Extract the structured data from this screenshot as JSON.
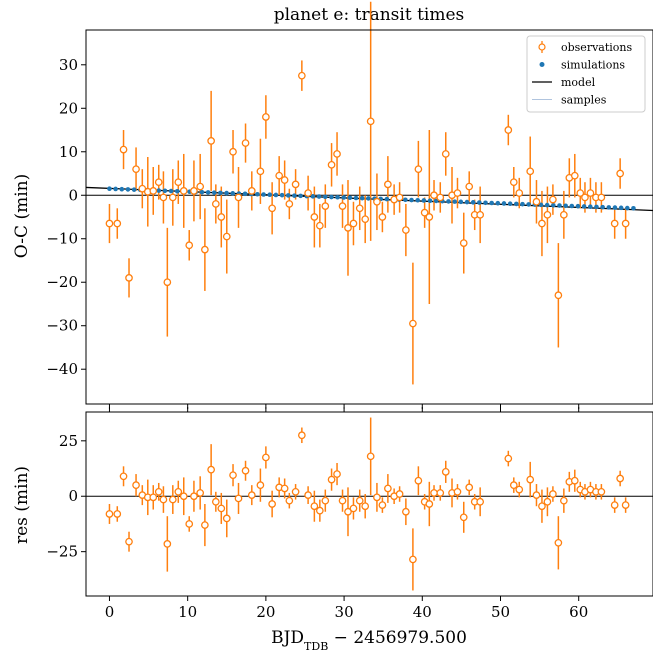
{
  "chart_data": [
    {
      "type": "scatter",
      "title": "planet e: transit times",
      "ylabel": "O-C (min)",
      "xlim": [
        -3,
        69.5
      ],
      "ylim": [
        -48,
        38
      ],
      "x_ticks": [
        0,
        10,
        20,
        30,
        40,
        50,
        60
      ],
      "y_ticks": [
        -40,
        -30,
        -20,
        -10,
        0,
        10,
        20,
        30
      ],
      "y_tick_labels": [
        "−40",
        "−30",
        "−20",
        "−10",
        "0",
        "10",
        "20",
        "30"
      ],
      "legend": {
        "placement": "top-right",
        "entries": [
          "observations",
          "simulations",
          "model",
          "samples"
        ]
      },
      "colors": {
        "observations": "#ff7f0e",
        "simulations": "#1f77b4",
        "model": "#000000",
        "samples": "#b0c4de"
      },
      "model": {
        "x": [
          -3,
          69.5
        ],
        "y": [
          1.8,
          -3.5
        ]
      },
      "simulations": {
        "x_start": 0,
        "x_end": 67,
        "count": 86,
        "y_start": 1.5,
        "y_end": -3.0
      },
      "observations": [
        {
          "x": 0.0,
          "y": -6.5,
          "err": 4.5
        },
        {
          "x": 1.0,
          "y": -6.5,
          "err": 3.5
        },
        {
          "x": 1.8,
          "y": 10.5,
          "err": 4.5
        },
        {
          "x": 2.5,
          "y": -19.0,
          "err": 4.5
        },
        {
          "x": 3.4,
          "y": 6.0,
          "err": 5.0
        },
        {
          "x": 4.2,
          "y": 1.5,
          "err": 4.5
        },
        {
          "x": 4.9,
          "y": 0.8,
          "err": 8.0
        },
        {
          "x": 5.6,
          "y": 1.0,
          "err": 5.5
        },
        {
          "x": 6.3,
          "y": 3.0,
          "err": 4.0
        },
        {
          "x": 6.9,
          "y": -0.5,
          "err": 6.0
        },
        {
          "x": 7.4,
          "y": -20.0,
          "err": 12.5
        },
        {
          "x": 8.1,
          "y": -0.5,
          "err": 6.5
        },
        {
          "x": 8.8,
          "y": 3.0,
          "err": 5.0
        },
        {
          "x": 9.5,
          "y": 1.0,
          "err": 8.5
        },
        {
          "x": 10.2,
          "y": -11.5,
          "err": 3.5
        },
        {
          "x": 10.8,
          "y": 1.0,
          "err": 7.0
        },
        {
          "x": 11.6,
          "y": 2.0,
          "err": 7.5
        },
        {
          "x": 12.2,
          "y": -12.5,
          "err": 9.5
        },
        {
          "x": 13.0,
          "y": 12.5,
          "err": 11.5
        },
        {
          "x": 13.6,
          "y": -2.0,
          "err": 4.5
        },
        {
          "x": 14.3,
          "y": -5.0,
          "err": 7.0
        },
        {
          "x": 15.0,
          "y": -9.5,
          "err": 8.5
        },
        {
          "x": 15.8,
          "y": 10.0,
          "err": 5.0
        },
        {
          "x": 16.5,
          "y": -0.5,
          "err": 7.0
        },
        {
          "x": 17.4,
          "y": 12.0,
          "err": 4.5
        },
        {
          "x": 18.2,
          "y": 1.0,
          "err": 4.5
        },
        {
          "x": 19.3,
          "y": 5.5,
          "err": 7.5
        },
        {
          "x": 20.0,
          "y": 18.0,
          "err": 5.0
        },
        {
          "x": 20.8,
          "y": -3.0,
          "err": 6.0
        },
        {
          "x": 21.7,
          "y": 4.5,
          "err": 4.5
        },
        {
          "x": 22.4,
          "y": 3.5,
          "err": 4.5
        },
        {
          "x": 23.0,
          "y": -2.0,
          "err": 3.5
        },
        {
          "x": 23.8,
          "y": 2.5,
          "err": 3.5
        },
        {
          "x": 24.6,
          "y": 27.5,
          "err": 3.5
        },
        {
          "x": 25.4,
          "y": 0.5,
          "err": 4.0
        },
        {
          "x": 26.2,
          "y": -5.0,
          "err": 7.0
        },
        {
          "x": 26.9,
          "y": -7.0,
          "err": 5.0
        },
        {
          "x": 27.6,
          "y": -2.5,
          "err": 5.0
        },
        {
          "x": 28.4,
          "y": 7.0,
          "err": 5.0
        },
        {
          "x": 29.1,
          "y": 9.5,
          "err": 5.0
        },
        {
          "x": 29.8,
          "y": -2.5,
          "err": 5.0
        },
        {
          "x": 30.5,
          "y": -7.5,
          "err": 11.0
        },
        {
          "x": 31.2,
          "y": -6.5,
          "err": 5.0
        },
        {
          "x": 32.0,
          "y": -3.0,
          "err": 5.0
        },
        {
          "x": 32.7,
          "y": -5.5,
          "err": 5.5
        },
        {
          "x": 33.4,
          "y": 17.0,
          "err": 27.5
        },
        {
          "x": 34.2,
          "y": -1.5,
          "err": 6.5
        },
        {
          "x": 34.9,
          "y": -5.0,
          "err": 3.5
        },
        {
          "x": 35.6,
          "y": 2.5,
          "err": 6.5
        },
        {
          "x": 36.4,
          "y": -1.0,
          "err": 3.5
        },
        {
          "x": 37.1,
          "y": -0.5,
          "err": 3.5
        },
        {
          "x": 37.9,
          "y": -8.0,
          "err": 6.0
        },
        {
          "x": 38.8,
          "y": -29.5,
          "err": 14.0
        },
        {
          "x": 39.5,
          "y": 6.0,
          "err": 6.5
        },
        {
          "x": 40.3,
          "y": -4.0,
          "err": 3.5
        },
        {
          "x": 40.9,
          "y": -5.0,
          "err": 20.0
        },
        {
          "x": 41.5,
          "y": 0.0,
          "err": 3.5
        },
        {
          "x": 42.3,
          "y": -0.5,
          "err": 3.5
        },
        {
          "x": 43.0,
          "y": 9.5,
          "err": 5.0
        },
        {
          "x": 43.8,
          "y": 0.0,
          "err": 6.5
        },
        {
          "x": 44.5,
          "y": 0.5,
          "err": 3.5
        },
        {
          "x": 45.3,
          "y": -11.0,
          "err": 7.0
        },
        {
          "x": 46.0,
          "y": 2.0,
          "err": 3.5
        },
        {
          "x": 46.7,
          "y": -4.5,
          "err": 3.5
        },
        {
          "x": 47.4,
          "y": -4.5,
          "err": 6.5
        },
        {
          "x": 51.0,
          "y": 15.0,
          "err": 3.5
        },
        {
          "x": 51.7,
          "y": 3.0,
          "err": 3.5
        },
        {
          "x": 52.4,
          "y": 0.5,
          "err": 3.5
        },
        {
          "x": 53.8,
          "y": 5.5,
          "err": 8.0
        },
        {
          "x": 54.6,
          "y": -1.5,
          "err": 5.0
        },
        {
          "x": 55.3,
          "y": -6.5,
          "err": 7.5
        },
        {
          "x": 56.0,
          "y": -4.5,
          "err": 6.5
        },
        {
          "x": 56.7,
          "y": -1.0,
          "err": 3.5
        },
        {
          "x": 57.4,
          "y": -23.0,
          "err": 12.0
        },
        {
          "x": 58.1,
          "y": -4.5,
          "err": 5.5
        },
        {
          "x": 58.8,
          "y": 4.0,
          "err": 4.5
        },
        {
          "x": 59.5,
          "y": 4.5,
          "err": 5.0
        },
        {
          "x": 60.2,
          "y": 0.5,
          "err": 3.5
        },
        {
          "x": 60.8,
          "y": -0.5,
          "err": 3.5
        },
        {
          "x": 61.5,
          "y": 0.5,
          "err": 3.5
        },
        {
          "x": 62.2,
          "y": -0.5,
          "err": 3.5
        },
        {
          "x": 62.9,
          "y": -0.5,
          "err": 3.5
        },
        {
          "x": 64.6,
          "y": -6.5,
          "err": 3.5
        },
        {
          "x": 65.3,
          "y": 5.0,
          "err": 3.5
        },
        {
          "x": 66.0,
          "y": -6.5,
          "err": 3.5
        }
      ]
    },
    {
      "type": "scatter",
      "ylabel": "res (min)",
      "xlabel": "BJD",
      "xlabel_subscript": "TDB",
      "xlabel_suffix": " − 2456979.500",
      "xlim": [
        -3,
        69.5
      ],
      "ylim": [
        -45,
        38
      ],
      "x_ticks": [
        0,
        10,
        20,
        30,
        40,
        50,
        60
      ],
      "x_tick_labels": [
        "0",
        "10",
        "20",
        "30",
        "40",
        "50",
        "60"
      ],
      "y_ticks": [
        -25,
        0,
        25
      ],
      "y_tick_labels": [
        "−25",
        "0",
        "25"
      ],
      "zero_line": 0,
      "residuals": [
        {
          "x": 0.0,
          "y": -8.0,
          "err": 4.5
        },
        {
          "x": 1.0,
          "y": -8.0,
          "err": 3.5
        },
        {
          "x": 1.8,
          "y": 9.0,
          "err": 4.5
        },
        {
          "x": 2.5,
          "y": -20.5,
          "err": 4.5
        },
        {
          "x": 3.4,
          "y": 5.0,
          "err": 5.0
        },
        {
          "x": 4.2,
          "y": 0.5,
          "err": 4.5
        },
        {
          "x": 4.9,
          "y": -0.5,
          "err": 8.0
        },
        {
          "x": 5.6,
          "y": -0.5,
          "err": 5.5
        },
        {
          "x": 6.3,
          "y": 2.0,
          "err": 4.0
        },
        {
          "x": 6.9,
          "y": -1.5,
          "err": 6.0
        },
        {
          "x": 7.4,
          "y": -21.5,
          "err": 12.5
        },
        {
          "x": 8.1,
          "y": -1.5,
          "err": 6.5
        },
        {
          "x": 8.8,
          "y": 2.0,
          "err": 5.0
        },
        {
          "x": 9.5,
          "y": 0.0,
          "err": 8.5
        },
        {
          "x": 10.2,
          "y": -12.5,
          "err": 3.5
        },
        {
          "x": 10.8,
          "y": 0.0,
          "err": 7.0
        },
        {
          "x": 11.6,
          "y": 1.5,
          "err": 7.5
        },
        {
          "x": 12.2,
          "y": -13.0,
          "err": 9.5
        },
        {
          "x": 13.0,
          "y": 12.0,
          "err": 11.5
        },
        {
          "x": 13.6,
          "y": -2.5,
          "err": 4.5
        },
        {
          "x": 14.3,
          "y": -5.5,
          "err": 7.0
        },
        {
          "x": 15.0,
          "y": -10.0,
          "err": 8.5
        },
        {
          "x": 15.8,
          "y": 9.5,
          "err": 5.0
        },
        {
          "x": 16.5,
          "y": -1.0,
          "err": 7.0
        },
        {
          "x": 17.4,
          "y": 11.5,
          "err": 4.5
        },
        {
          "x": 18.2,
          "y": 0.5,
          "err": 4.5
        },
        {
          "x": 19.3,
          "y": 5.0,
          "err": 7.5
        },
        {
          "x": 20.0,
          "y": 17.5,
          "err": 5.0
        },
        {
          "x": 20.8,
          "y": -3.5,
          "err": 6.0
        },
        {
          "x": 21.7,
          "y": 4.0,
          "err": 4.5
        },
        {
          "x": 22.4,
          "y": 3.5,
          "err": 4.5
        },
        {
          "x": 23.0,
          "y": -2.0,
          "err": 3.5
        },
        {
          "x": 23.8,
          "y": 2.0,
          "err": 3.5
        },
        {
          "x": 24.6,
          "y": 27.5,
          "err": 3.5
        },
        {
          "x": 25.4,
          "y": 0.5,
          "err": 4.0
        },
        {
          "x": 26.2,
          "y": -4.5,
          "err": 7.0
        },
        {
          "x": 26.9,
          "y": -6.5,
          "err": 5.0
        },
        {
          "x": 27.6,
          "y": -2.0,
          "err": 5.0
        },
        {
          "x": 28.4,
          "y": 7.5,
          "err": 5.0
        },
        {
          "x": 29.1,
          "y": 10.0,
          "err": 5.0
        },
        {
          "x": 29.8,
          "y": -2.0,
          "err": 5.0
        },
        {
          "x": 30.5,
          "y": -7.0,
          "err": 11.0
        },
        {
          "x": 31.2,
          "y": -5.5,
          "err": 5.0
        },
        {
          "x": 32.0,
          "y": -2.0,
          "err": 5.0
        },
        {
          "x": 32.7,
          "y": -4.5,
          "err": 5.5
        },
        {
          "x": 33.4,
          "y": 18.0,
          "err": 17.5
        },
        {
          "x": 34.2,
          "y": -0.5,
          "err": 6.5
        },
        {
          "x": 34.9,
          "y": -4.0,
          "err": 3.5
        },
        {
          "x": 35.6,
          "y": 3.5,
          "err": 6.5
        },
        {
          "x": 36.4,
          "y": 0.0,
          "err": 3.5
        },
        {
          "x": 37.1,
          "y": 1.0,
          "err": 3.5
        },
        {
          "x": 37.9,
          "y": -7.0,
          "err": 6.0
        },
        {
          "x": 38.8,
          "y": -28.5,
          "err": 14.0
        },
        {
          "x": 39.5,
          "y": 7.0,
          "err": 6.5
        },
        {
          "x": 40.3,
          "y": -2.5,
          "err": 3.5
        },
        {
          "x": 40.9,
          "y": -3.5,
          "err": 10.0
        },
        {
          "x": 41.5,
          "y": 1.5,
          "err": 3.5
        },
        {
          "x": 42.3,
          "y": 1.5,
          "err": 3.5
        },
        {
          "x": 43.0,
          "y": 11.0,
          "err": 5.0
        },
        {
          "x": 43.8,
          "y": 1.5,
          "err": 6.5
        },
        {
          "x": 44.5,
          "y": 2.0,
          "err": 3.5
        },
        {
          "x": 45.3,
          "y": -9.5,
          "err": 7.0
        },
        {
          "x": 46.0,
          "y": 4.0,
          "err": 3.5
        },
        {
          "x": 46.7,
          "y": -2.5,
          "err": 3.5
        },
        {
          "x": 47.4,
          "y": -2.5,
          "err": 6.5
        },
        {
          "x": 51.0,
          "y": 17.0,
          "err": 3.5
        },
        {
          "x": 51.7,
          "y": 5.0,
          "err": 3.5
        },
        {
          "x": 52.4,
          "y": 3.0,
          "err": 3.5
        },
        {
          "x": 53.8,
          "y": 7.5,
          "err": 8.0
        },
        {
          "x": 54.6,
          "y": 0.5,
          "err": 5.0
        },
        {
          "x": 55.3,
          "y": -4.5,
          "err": 7.5
        },
        {
          "x": 56.0,
          "y": -2.5,
          "err": 6.5
        },
        {
          "x": 56.7,
          "y": 1.0,
          "err": 3.5
        },
        {
          "x": 57.4,
          "y": -21.0,
          "err": 12.0
        },
        {
          "x": 58.1,
          "y": -2.0,
          "err": 5.5
        },
        {
          "x": 58.8,
          "y": 6.5,
          "err": 4.5
        },
        {
          "x": 59.5,
          "y": 7.0,
          "err": 5.0
        },
        {
          "x": 60.2,
          "y": 3.0,
          "err": 3.5
        },
        {
          "x": 60.8,
          "y": 2.0,
          "err": 3.5
        },
        {
          "x": 61.5,
          "y": 3.0,
          "err": 3.5
        },
        {
          "x": 62.2,
          "y": 2.0,
          "err": 3.5
        },
        {
          "x": 62.9,
          "y": 2.0,
          "err": 3.5
        },
        {
          "x": 64.6,
          "y": -4.0,
          "err": 3.5
        },
        {
          "x": 65.3,
          "y": 8.0,
          "err": 3.5
        },
        {
          "x": 66.0,
          "y": -4.0,
          "err": 3.5
        }
      ]
    }
  ]
}
